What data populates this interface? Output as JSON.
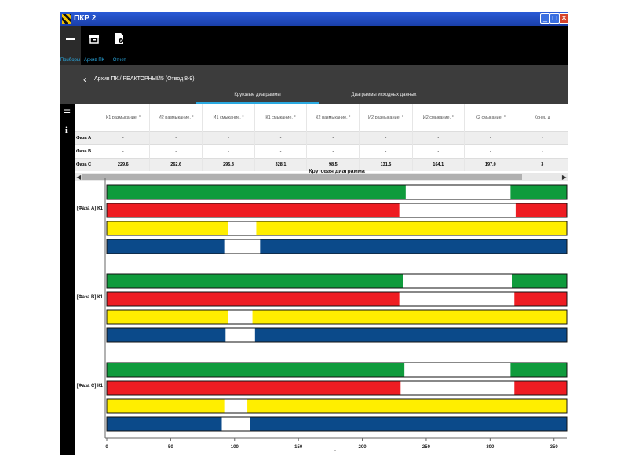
{
  "window": {
    "title": "ПКР 2",
    "min_glyph": "_",
    "max_glyph": "□",
    "close_glyph": "✕"
  },
  "toolbar": {
    "devices_label": "Приборы",
    "archive_label": "Архив ПК",
    "report_label": "Отчет"
  },
  "header": {
    "breadcrumb": "Архив ПК / РЕАКТОРНЫЙ5 (Отвод 8-9)",
    "tabs": [
      "Круговые диаграммы",
      "Диаграммы исходных данных"
    ],
    "active_tab": 0
  },
  "table": {
    "columns": [
      "К1 размыкание, °",
      "И2 размыкание, °",
      "И1 смыкание, °",
      "К1 смыкание, °",
      "К2 размыкание, °",
      "И2 размыкание, °",
      "И2 смыкание, °",
      "К2 смыкание, °",
      "Конец д"
    ],
    "rows": [
      {
        "label": "Фаза A",
        "values": [
          "-",
          "-",
          "-",
          "-",
          "-",
          "-",
          "-",
          "-",
          "-"
        ]
      },
      {
        "label": "Фаза B",
        "values": [
          "-",
          "-",
          "-",
          "-",
          "-",
          "-",
          "-",
          "-",
          "-"
        ]
      },
      {
        "label": "Фаза C",
        "values": [
          "229.6",
          "262.6",
          "295.3",
          "328.1",
          "98.5",
          "131.5",
          "164.1",
          "197.0",
          "3"
        ]
      }
    ]
  },
  "scrollbar": {
    "left_glyph": "◀",
    "right_glyph": "▶"
  },
  "icons": {
    "back": "chevron-left-icon",
    "menu": "list-icon",
    "info": "info-icon",
    "minus": "minus-icon",
    "archive": "archive-icon",
    "report": "report-icon"
  },
  "colors": {
    "green": "#0f9b3c",
    "red": "#ee1c22",
    "yellow": "#ffee00",
    "blue": "#0b4a8a",
    "accent": "#2aa9e0",
    "header": "#3c3c3c"
  },
  "chart_data": {
    "type": "bar",
    "title": "Круговая диаграмма",
    "xlabel": "°",
    "xlim": [
      0,
      360
    ],
    "xticks": [
      0,
      50,
      100,
      150,
      200,
      250,
      300,
      350
    ],
    "groups": [
      {
        "label": "[Фаза А] К1",
        "tracks": [
          {
            "color": "green",
            "gap": [
              234,
              316
            ]
          },
          {
            "color": "red",
            "gap": [
              229,
              320
            ]
          },
          {
            "color": "yellow",
            "gap": [
              95,
              117
            ]
          },
          {
            "color": "blue",
            "gap": [
              92,
              120
            ]
          }
        ]
      },
      {
        "label": "[Фаза В] К1",
        "tracks": [
          {
            "color": "green",
            "gap": [
              232,
              317
            ]
          },
          {
            "color": "red",
            "gap": [
              229,
              319
            ]
          },
          {
            "color": "yellow",
            "gap": [
              95,
              114
            ]
          },
          {
            "color": "blue",
            "gap": [
              93,
              116
            ]
          }
        ]
      },
      {
        "label": "[Фаза С] К1",
        "tracks": [
          {
            "color": "green",
            "gap": [
              233,
              316
            ]
          },
          {
            "color": "red",
            "gap": [
              230,
              319
            ]
          },
          {
            "color": "yellow",
            "gap": [
              92,
              110
            ]
          },
          {
            "color": "blue",
            "gap": [
              90,
              112
            ]
          }
        ]
      }
    ]
  }
}
